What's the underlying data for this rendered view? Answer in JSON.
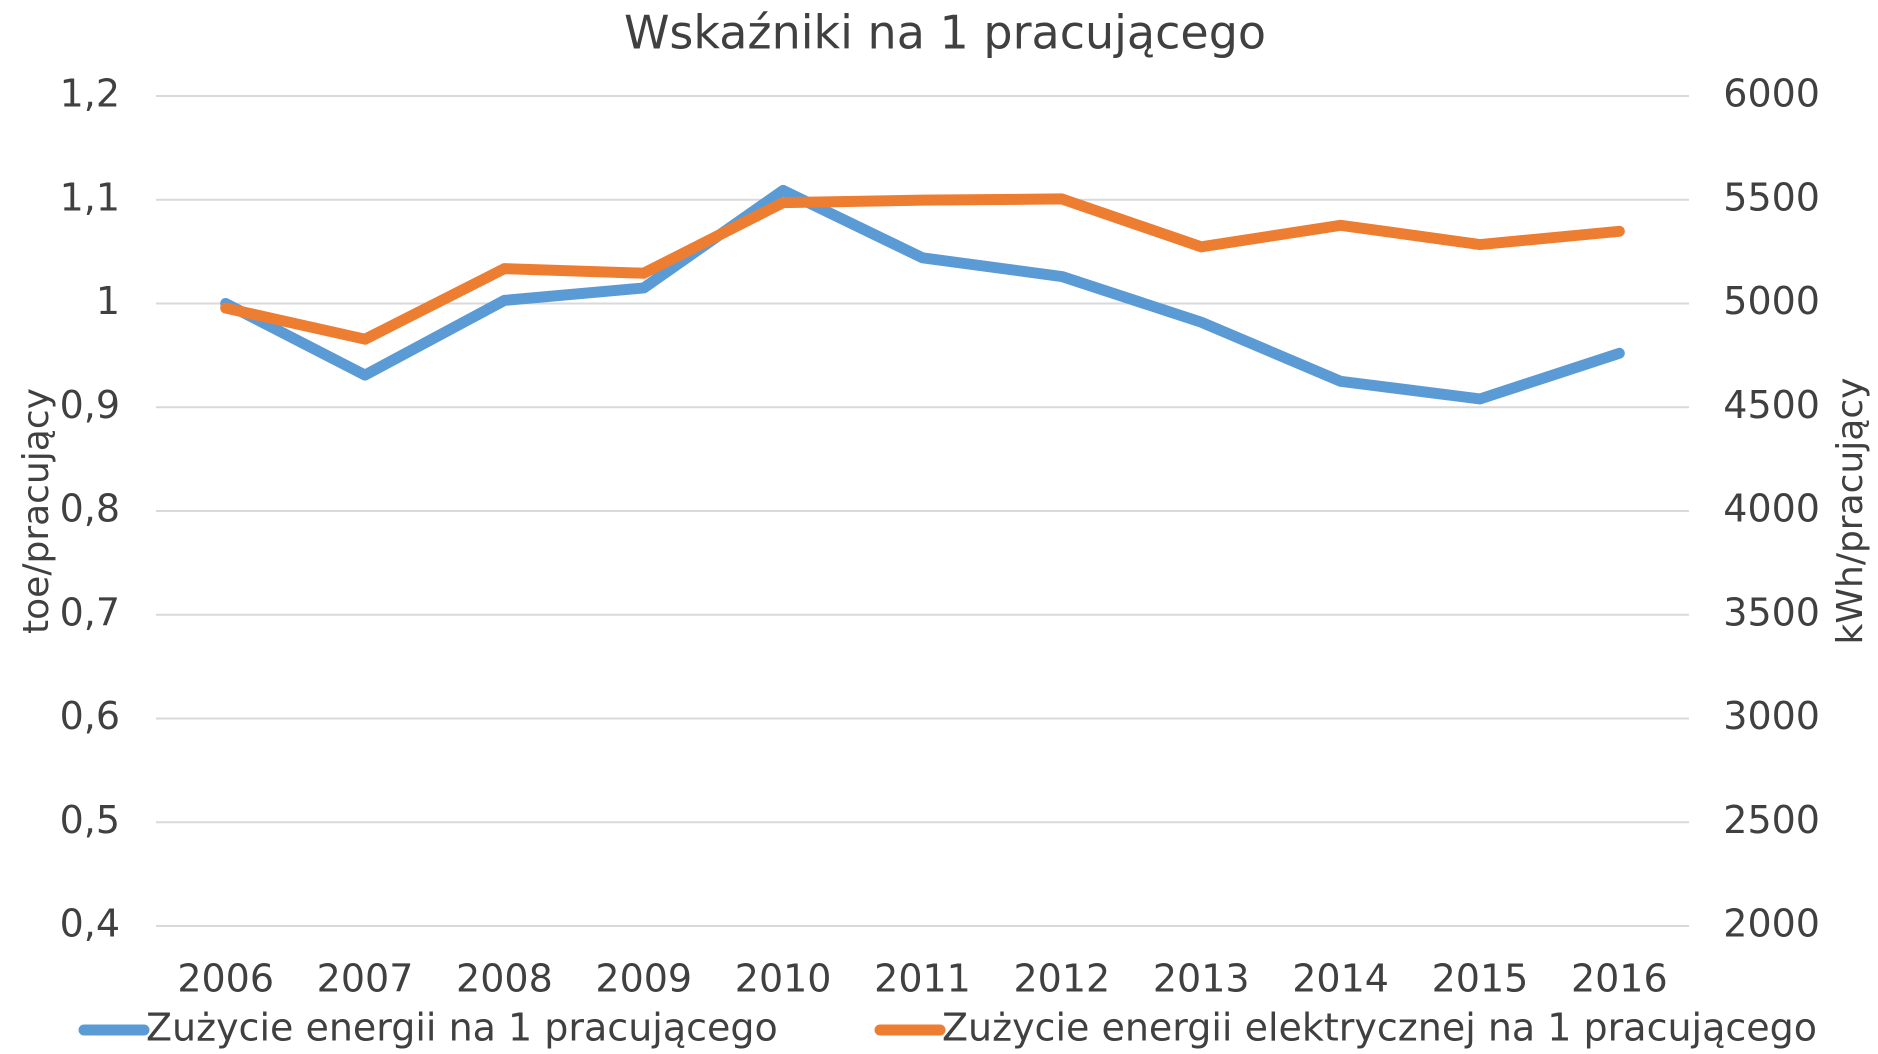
{
  "chart_data": {
    "type": "line",
    "title": "Wskaźniki na 1 pracującego",
    "ylabel": "toe/pracujący",
    "y2label": "kWh/pracujący",
    "categories": [
      "2006",
      "2007",
      "2008",
      "2009",
      "2010",
      "2011",
      "2012",
      "2013",
      "2014",
      "2015",
      "2016"
    ],
    "series": [
      {
        "name": "Zużycie energii na 1 pracującego",
        "color": "#5b9bd5",
        "values": [
          1.0,
          0.931,
          1.003,
          1.015,
          1.109,
          1.044,
          1.026,
          0.982,
          0.925,
          0.908,
          0.952
        ]
      },
      {
        "name": "Zużycie energii elektrycznej na 1 pracującego",
        "color": "#ed7d31",
        "axis": "y2",
        "values": [
          4978,
          4828,
          5168,
          5146,
          5486,
          5498,
          5504,
          5273,
          5377,
          5284,
          5348
        ]
      }
    ],
    "ylim": [
      0.4,
      1.2
    ],
    "yticks": [
      {
        "value": 0.4,
        "label": "0,4"
      },
      {
        "value": 0.5,
        "label": "0,5"
      },
      {
        "value": 0.6,
        "label": "0,6"
      },
      {
        "value": 0.7,
        "label": "0,7"
      },
      {
        "value": 0.8,
        "label": "0,8"
      },
      {
        "value": 0.9,
        "label": "0,9"
      },
      1,
      {
        "value": 1.1,
        "label": "1,1"
      },
      {
        "value": 1.2,
        "label": "1,2"
      }
    ],
    "y2lim": [
      2000,
      6000
    ],
    "y2ticks": [
      2000,
      2500,
      3000,
      3500,
      4000,
      4500,
      5000,
      5500,
      6000
    ],
    "grid": true,
    "legend": "bottom"
  }
}
